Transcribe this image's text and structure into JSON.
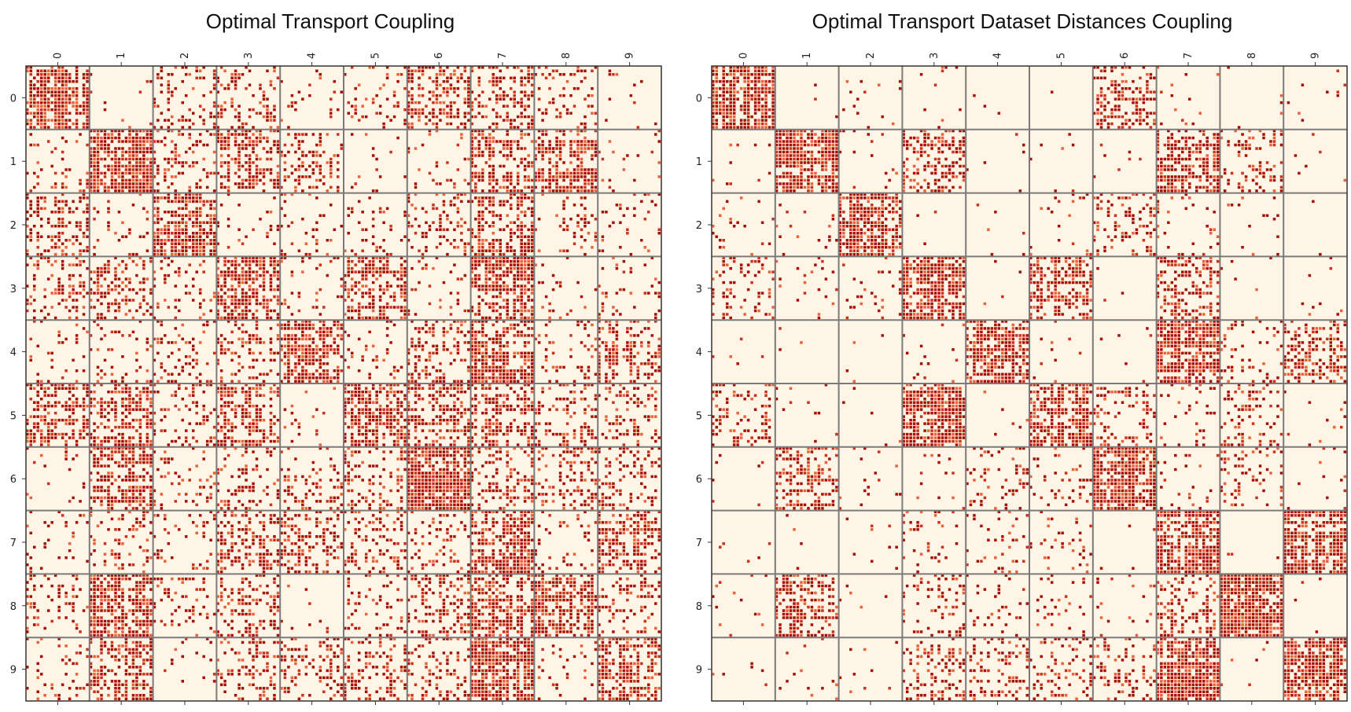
{
  "chart_data": [
    {
      "type": "heatmap",
      "title": "Optimal Transport Coupling",
      "xlabel": "",
      "ylabel": "",
      "x_tick_labels": [
        "0",
        "1",
        "2",
        "3",
        "4",
        "5",
        "6",
        "7",
        "8",
        "9"
      ],
      "y_tick_labels": [
        "0",
        "1",
        "2",
        "3",
        "4",
        "5",
        "6",
        "7",
        "8",
        "9"
      ],
      "x_ticks_position": "top",
      "grid": true,
      "colormap": "OrRd",
      "colors": {
        "low": "#fff5e6",
        "mid": "#e8623a",
        "high": "#a50f05"
      },
      "block_density": [
        [
          0.85,
          0.02,
          0.3,
          0.25,
          0.1,
          0.15,
          0.45,
          0.4,
          0.2,
          0.05
        ],
        [
          0.15,
          0.95,
          0.3,
          0.55,
          0.3,
          0.05,
          0.1,
          0.6,
          0.6,
          0.1
        ],
        [
          0.45,
          0.08,
          0.75,
          0.1,
          0.1,
          0.1,
          0.35,
          0.55,
          0.1,
          0.08
        ],
        [
          0.3,
          0.45,
          0.15,
          0.7,
          0.1,
          0.7,
          0.1,
          0.65,
          0.1,
          0.15
        ],
        [
          0.1,
          0.15,
          0.2,
          0.4,
          0.7,
          0.15,
          0.4,
          0.75,
          0.15,
          0.6
        ],
        [
          0.55,
          0.5,
          0.25,
          0.55,
          0.05,
          0.65,
          0.5,
          0.45,
          0.35,
          0.25
        ],
        [
          0.05,
          0.65,
          0.2,
          0.25,
          0.3,
          0.3,
          0.85,
          0.35,
          0.3,
          0.2
        ],
        [
          0.15,
          0.25,
          0.1,
          0.45,
          0.35,
          0.3,
          0.25,
          0.8,
          0.15,
          0.75
        ],
        [
          0.25,
          0.75,
          0.15,
          0.45,
          0.05,
          0.25,
          0.4,
          0.6,
          0.8,
          0.25
        ],
        [
          0.15,
          0.55,
          0.05,
          0.4,
          0.35,
          0.35,
          0.3,
          0.85,
          0.1,
          0.75
        ]
      ]
    },
    {
      "type": "heatmap",
      "title": "Optimal Transport Dataset Distances Coupling",
      "xlabel": "",
      "ylabel": "",
      "x_tick_labels": [
        "0",
        "1",
        "2",
        "3",
        "4",
        "5",
        "6",
        "7",
        "8",
        "9"
      ],
      "y_tick_labels": [
        "0",
        "1",
        "2",
        "3",
        "4",
        "5",
        "6",
        "7",
        "8",
        "9"
      ],
      "x_ticks_position": "top",
      "grid": true,
      "colormap": "OrRd",
      "colors": {
        "low": "#fff5e6",
        "mid": "#e8623a",
        "high": "#a50f05"
      },
      "block_density": [
        [
          0.95,
          0.02,
          0.05,
          0.05,
          0.02,
          0.02,
          0.45,
          0.05,
          0.02,
          0.02
        ],
        [
          0.02,
          1.0,
          0.05,
          0.45,
          0.02,
          0.02,
          0.02,
          0.65,
          0.3,
          0.02
        ],
        [
          0.1,
          0.05,
          0.85,
          0.02,
          0.02,
          0.05,
          0.3,
          0.1,
          0.05,
          0.02
        ],
        [
          0.25,
          0.05,
          0.1,
          0.9,
          0.02,
          0.75,
          0.02,
          0.45,
          0.02,
          0.05
        ],
        [
          0.02,
          0.02,
          0.02,
          0.05,
          0.85,
          0.02,
          0.02,
          0.7,
          0.15,
          0.4
        ],
        [
          0.35,
          0.05,
          0.02,
          0.8,
          0.02,
          0.85,
          0.3,
          0.1,
          0.35,
          0.05
        ],
        [
          0.02,
          0.45,
          0.05,
          0.05,
          0.2,
          0.1,
          0.98,
          0.1,
          0.25,
          0.05
        ],
        [
          0.02,
          0.02,
          0.02,
          0.15,
          0.15,
          0.1,
          0.02,
          0.95,
          0.02,
          0.75
        ],
        [
          0.05,
          0.55,
          0.02,
          0.2,
          0.1,
          0.1,
          0.05,
          0.4,
          0.9,
          0.02
        ],
        [
          0.02,
          0.05,
          0.02,
          0.35,
          0.3,
          0.25,
          0.25,
          0.85,
          0.02,
          0.9
        ]
      ]
    }
  ]
}
